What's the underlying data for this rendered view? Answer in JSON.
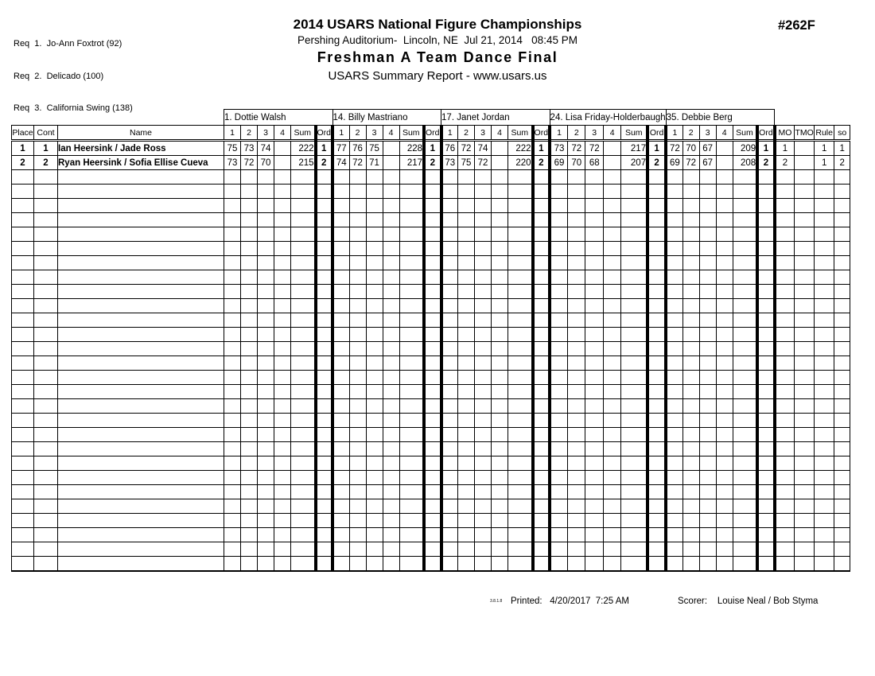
{
  "req_list": [
    "Req  1.  Jo-Ann Foxtrot (92)",
    "Req  2.  Delicado (100)",
    "Req  3.  California Swing (138)"
  ],
  "header": {
    "title": "2014 USARS National Figure Championships",
    "venue_line": "Pershing Auditorium-  Lincoln, NE  Jul 21, 2014   08:45 PM",
    "event_title": "Freshman A Team Dance Final",
    "report_line": "USARS Summary Report - www.usars.us",
    "event_number": "#262F"
  },
  "judges": [
    "1.  Dottie Walsh",
    "14.  Billy Mastriano",
    "17.  Janet Jordan",
    "24.  Lisa Friday-Holderbaugh",
    "35.  Debbie Berg"
  ],
  "columns": {
    "place": "Place",
    "cont": "Cont",
    "name": "Name",
    "judge_cols": [
      "1",
      "2",
      "3",
      "4",
      "Sum",
      "Ord"
    ],
    "right_cols": [
      "MO",
      "TMO",
      "Rule",
      "so"
    ]
  },
  "rows": [
    {
      "place": "1",
      "cont": "1",
      "name": "Ian Heersink / Jade Ross",
      "judges": [
        {
          "s1": "75",
          "s2": "73",
          "s3": "74",
          "s4": "",
          "sum": "222",
          "ord": "1"
        },
        {
          "s1": "77",
          "s2": "76",
          "s3": "75",
          "s4": "",
          "sum": "228",
          "ord": "1"
        },
        {
          "s1": "76",
          "s2": "72",
          "s3": "74",
          "s4": "",
          "sum": "222",
          "ord": "1"
        },
        {
          "s1": "73",
          "s2": "72",
          "s3": "72",
          "s4": "",
          "sum": "217",
          "ord": "1"
        },
        {
          "s1": "72",
          "s2": "70",
          "s3": "67",
          "s4": "",
          "sum": "209",
          "ord": "1"
        }
      ],
      "mo": "1",
      "tmo": "",
      "rule": "1",
      "so": "1"
    },
    {
      "place": "2",
      "cont": "2",
      "name": "Ryan Heersink / Sofia Ellise Cueva",
      "judges": [
        {
          "s1": "73",
          "s2": "72",
          "s3": "70",
          "s4": "",
          "sum": "215",
          "ord": "2"
        },
        {
          "s1": "74",
          "s2": "72",
          "s3": "71",
          "s4": "",
          "sum": "217",
          "ord": "2"
        },
        {
          "s1": "73",
          "s2": "75",
          "s3": "72",
          "s4": "",
          "sum": "220",
          "ord": "2"
        },
        {
          "s1": "69",
          "s2": "70",
          "s3": "68",
          "s4": "",
          "sum": "207",
          "ord": "2"
        },
        {
          "s1": "69",
          "s2": "72",
          "s3": "67",
          "s4": "",
          "sum": "208",
          "ord": "2"
        }
      ],
      "mo": "2",
      "tmo": "",
      "rule": "1",
      "so": "2"
    }
  ],
  "empty_row_count": 28,
  "footer": {
    "version": "3.8.1.8",
    "printed_line": "Printed:   4/20/2017  7:25 AM",
    "scorer_line": "Scorer:    Louise Neal / Bob Styma"
  }
}
